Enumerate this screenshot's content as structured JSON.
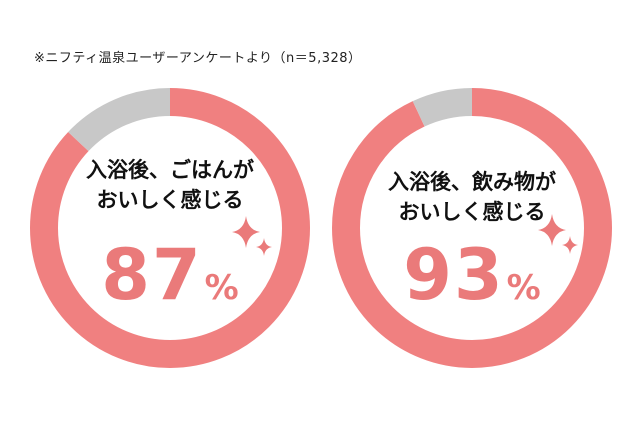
{
  "source_note": "※ニフティ温泉ユーザーアンケートより（n＝5,328）",
  "colors": {
    "accent": "#f08080",
    "remainder": "#c8c8c8",
    "value_text": "#ea7a7a",
    "sparkle": "#ea7a7a"
  },
  "chart_data": [
    {
      "type": "pie",
      "style": "donut",
      "label_lines": [
        "入浴後、ごはんが",
        "おいしく感じる"
      ],
      "value": 87,
      "value_text": "87",
      "unit": "%",
      "slices": [
        87,
        13
      ]
    },
    {
      "type": "pie",
      "style": "donut",
      "label_lines": [
        "入浴後、飲み物が",
        "おいしく感じる"
      ],
      "value": 93,
      "value_text": "93",
      "unit": "%",
      "slices": [
        93,
        7
      ]
    }
  ]
}
